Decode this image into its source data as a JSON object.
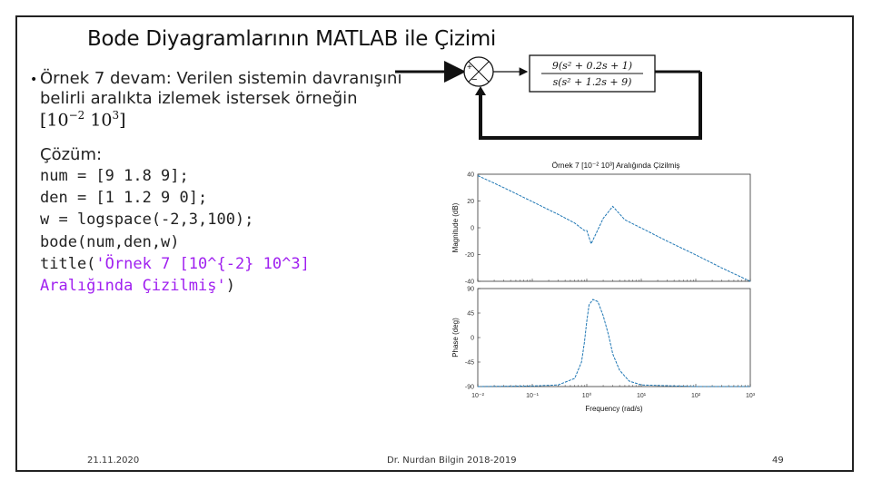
{
  "slide": {
    "title": "Bode Diyagramlarının MATLAB ile Çizimi",
    "bullet": "•",
    "example_text": "Örnek 7 devam: Verilen sistemin davranışını belirli aralıkta izlemek istersek örneğin",
    "interval": {
      "open": "[10",
      "exp1": "−2",
      "mid": " 10",
      "exp2": "3",
      "close": "]"
    },
    "solution_label": "Çözüm:",
    "code": {
      "line1": "num = [9 1.8 9];",
      "line2": "den = [1 1.2 9 0];",
      "line3": "w = logspace(-2,3,100);",
      "line4": "bode(num,den,w)",
      "line5_prefix": "title(",
      "line5_str": "'Örnek 7 [10^{-2} 10^3]",
      "line6_str": "Aralığında Çizilmiş'",
      "line6_suffix": ")"
    }
  },
  "block_diagram": {
    "sum_plus": "+",
    "sum_minus": "−",
    "tf_numerator": "9(s² + 0.2s + 1)",
    "tf_denominator": "s(s² + 1.2s + 9)"
  },
  "footer": {
    "date": "21.11.2020",
    "author": "Dr. Nurdan Bilgin 2018-2019",
    "page": "49"
  },
  "chart_data": {
    "type": "line",
    "title": "Örnek 7 [10⁻² 10³] Aralığında Çizilmiş",
    "xlabel": "Frequency  (rad/s)",
    "x_scale": "log",
    "xlim": [
      0.01,
      1000
    ],
    "x_tick_labels": [
      "10⁻²",
      "10⁻¹",
      "10⁰",
      "10¹",
      "10²",
      "10³"
    ],
    "color": "#1f77b4",
    "panels": [
      {
        "name": "magnitude",
        "ylabel": "Magnitude (dB)",
        "ylim": [
          -40,
          40
        ],
        "y_ticks": [
          40,
          20,
          0,
          -20,
          -40
        ],
        "y_tick_labels": [
          "40",
          "20",
          "0",
          "-20",
          "-40"
        ],
        "x": [
          0.01,
          0.03,
          0.1,
          0.3,
          0.6,
          0.9,
          1.0,
          1.2,
          2.0,
          3.0,
          5.0,
          10,
          30,
          100,
          300,
          1000
        ],
        "y": [
          39,
          30,
          19.5,
          10,
          3.5,
          -2,
          -2,
          -12,
          7,
          16,
          6,
          -0.2,
          -10,
          -20.3,
          -30,
          -40
        ]
      },
      {
        "name": "phase",
        "ylabel": "Phase (deg)",
        "ylim": [
          -90,
          90
        ],
        "y_ticks": [
          90,
          45,
          0,
          -45,
          -90
        ],
        "y_tick_labels": [
          "90",
          "45",
          "0",
          "-45",
          "-90"
        ],
        "x": [
          0.01,
          0.1,
          0.3,
          0.6,
          0.8,
          0.9,
          1.0,
          1.1,
          1.3,
          1.6,
          2.0,
          2.5,
          3.0,
          4.0,
          6.0,
          10,
          100,
          1000
        ],
        "y": [
          -90,
          -89,
          -87,
          -75,
          -45,
          -10,
          30,
          60,
          70,
          66,
          40,
          5,
          -30,
          -60,
          -80,
          -87,
          -90,
          -90
        ]
      }
    ]
  }
}
